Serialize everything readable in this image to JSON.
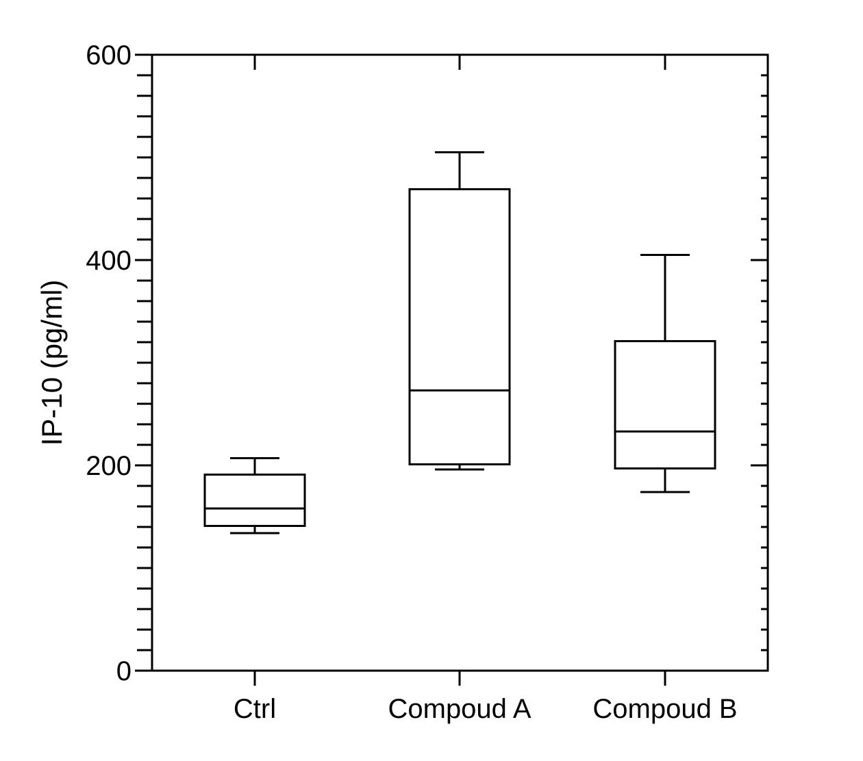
{
  "chart_data": {
    "type": "box",
    "title": "",
    "xlabel": "",
    "ylabel": "IP-10 (pg/ml)",
    "ylim": [
      0,
      600
    ],
    "yticks": [
      "0",
      "200",
      "400",
      "600"
    ],
    "categories": [
      "Ctrl",
      "Compoud A",
      "Compoud B"
    ],
    "boxes": [
      {
        "name": "Ctrl",
        "min": 134,
        "q1": 141,
        "median": 158,
        "q3": 191,
        "max": 207
      },
      {
        "name": "Compoud A",
        "min": 196,
        "q1": 201,
        "median": 273,
        "q3": 469,
        "max": 505
      },
      {
        "name": "Compoud B",
        "min": 174,
        "q1": 197,
        "median": 233,
        "q3": 321,
        "max": 405
      }
    ],
    "grid": false,
    "legend": "none"
  }
}
